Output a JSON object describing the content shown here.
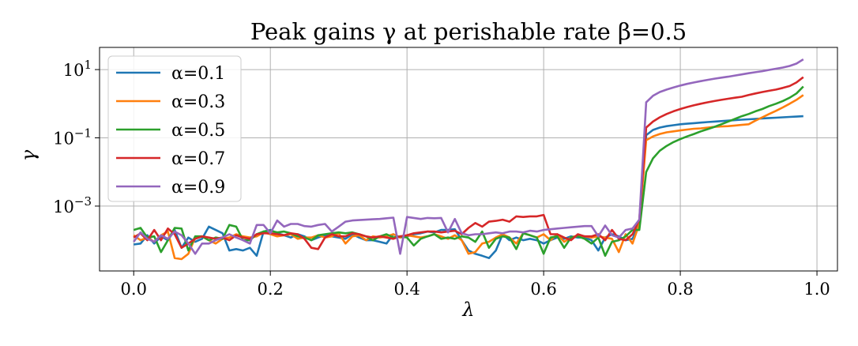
{
  "chart_data": {
    "type": "line",
    "title": "Peak gains γ at perishable rate β=0.5",
    "xlabel": "λ",
    "ylabel": "γ",
    "yscale": "log",
    "xlim": [
      -0.05,
      1.03
    ],
    "ylim_log10": [
      -4.9,
      1.65
    ],
    "grid": true,
    "legend_position": "upper left",
    "xticks": [
      {
        "value": 0.0,
        "label": "0.0"
      },
      {
        "value": 0.2,
        "label": "0.2"
      },
      {
        "value": 0.4,
        "label": "0.4"
      },
      {
        "value": 0.6,
        "label": "0.6"
      },
      {
        "value": 0.8,
        "label": "0.8"
      },
      {
        "value": 1.0,
        "label": "1.0"
      }
    ],
    "yticks": [
      {
        "value": 10,
        "base": "10",
        "exp": "1"
      },
      {
        "value": 0.1,
        "base": "10",
        "exp": "−1"
      },
      {
        "value": 0.001,
        "base": "10",
        "exp": "−3"
      }
    ],
    "x": [
      0.0,
      0.01,
      0.02,
      0.03,
      0.04,
      0.05,
      0.06,
      0.07,
      0.08,
      0.09,
      0.1,
      0.11,
      0.12,
      0.13,
      0.14,
      0.15,
      0.16,
      0.17,
      0.18,
      0.19,
      0.2,
      0.21,
      0.22,
      0.23,
      0.24,
      0.25,
      0.26,
      0.27,
      0.28,
      0.29,
      0.3,
      0.31,
      0.32,
      0.33,
      0.34,
      0.35,
      0.36,
      0.37,
      0.38,
      0.39,
      0.4,
      0.41,
      0.42,
      0.43,
      0.44,
      0.45,
      0.46,
      0.47,
      0.48,
      0.49,
      0.5,
      0.51,
      0.52,
      0.53,
      0.54,
      0.55,
      0.56,
      0.57,
      0.58,
      0.59,
      0.6,
      0.61,
      0.62,
      0.63,
      0.64,
      0.65,
      0.66,
      0.67,
      0.68,
      0.69,
      0.7,
      0.71,
      0.72,
      0.73,
      0.74,
      0.75,
      0.76,
      0.77,
      0.78,
      0.79,
      0.8,
      0.81,
      0.82,
      0.83,
      0.84,
      0.85,
      0.86,
      0.87,
      0.88,
      0.89,
      0.9,
      0.91,
      0.92,
      0.93,
      0.94,
      0.95,
      0.96,
      0.97,
      0.98
    ],
    "series": [
      {
        "name": "α=0.1",
        "color": "#1f77b4",
        "values": [
          7.5e-05,
          8e-05,
          0.00014,
          8e-05,
          0.00013,
          0.0001,
          0.0002,
          6e-05,
          0.00012,
          9e-05,
          0.00011,
          0.00025,
          0.0002,
          0.00016,
          5e-05,
          5.5e-05,
          5e-05,
          6e-05,
          3.5e-05,
          0.00018,
          0.0002,
          0.00016,
          0.00014,
          0.00012,
          0.00015,
          0.00013,
          0.0001,
          0.00012,
          0.00014,
          0.00013,
          0.00012,
          0.00011,
          0.00015,
          0.00012,
          0.0001,
          0.0001,
          9e-05,
          8e-05,
          0.00015,
          0.00012,
          0.00013,
          0.00015,
          0.00016,
          0.00018,
          0.00017,
          0.0002,
          0.0002,
          0.00021,
          0.0001,
          5e-05,
          4e-05,
          3.5e-05,
          3e-05,
          5e-05,
          0.00015,
          0.0001,
          0.00012,
          0.0001,
          0.00011,
          0.0001,
          8e-05,
          0.0001,
          0.00012,
          0.00011,
          0.00013,
          0.00012,
          0.00012,
          0.0001,
          5e-05,
          0.00012,
          0.00015,
          0.00013,
          0.0001,
          0.00011,
          0.0003,
          0.12,
          0.17,
          0.2,
          0.22,
          0.235,
          0.25,
          0.26,
          0.27,
          0.28,
          0.29,
          0.3,
          0.31,
          0.32,
          0.33,
          0.34,
          0.35,
          0.36,
          0.37,
          0.38,
          0.39,
          0.4,
          0.41,
          0.42,
          0.43
        ]
      },
      {
        "name": "α=0.3",
        "color": "#ff7f0e",
        "values": [
          0.00014,
          0.0001,
          0.00012,
          9e-05,
          0.00014,
          0.00018,
          3e-05,
          2.8e-05,
          4e-05,
          0.00012,
          0.00013,
          0.0001,
          8e-05,
          0.00011,
          0.00012,
          0.00015,
          0.00013,
          0.00012,
          0.00013,
          0.00017,
          0.00015,
          0.00013,
          0.00014,
          0.00015,
          0.00011,
          0.00012,
          0.00012,
          0.00014,
          0.00012,
          0.00013,
          0.00016,
          8e-05,
          0.00013,
          0.00014,
          0.0001,
          0.00013,
          0.00012,
          0.00013,
          0.00015,
          0.00012,
          0.00014,
          0.00013,
          0.00012,
          0.00013,
          0.00015,
          0.00013,
          0.00011,
          0.00014,
          0.0001,
          4e-05,
          4.5e-05,
          8e-05,
          9e-05,
          0.00012,
          0.00015,
          0.00012,
          8e-05,
          0.00016,
          0.00014,
          0.00012,
          0.00015,
          0.0001,
          0.00015,
          9e-05,
          0.00012,
          0.00014,
          0.00013,
          0.00012,
          0.00013,
          0.00012,
          0.00011,
          4.5e-05,
          0.00015,
          8e-05,
          0.0003,
          0.085,
          0.11,
          0.13,
          0.145,
          0.155,
          0.165,
          0.175,
          0.185,
          0.19,
          0.2,
          0.21,
          0.215,
          0.22,
          0.23,
          0.24,
          0.25,
          0.32,
          0.4,
          0.5,
          0.62,
          0.78,
          1.0,
          1.3,
          1.8
        ]
      },
      {
        "name": "α=0.5",
        "color": "#2ca02c",
        "values": [
          0.0002,
          0.00023,
          0.00012,
          0.00013,
          4.5e-05,
          0.0001,
          0.00023,
          0.00022,
          5e-05,
          0.00013,
          0.00013,
          0.0001,
          0.00012,
          0.00011,
          0.00028,
          0.00025,
          0.0001,
          0.0001,
          0.00015,
          0.00018,
          0.00019,
          0.00017,
          0.00018,
          0.00016,
          0.00013,
          0.00012,
          0.0001,
          0.00014,
          0.00015,
          0.00016,
          0.00017,
          0.00016,
          0.00017,
          0.00015,
          0.00013,
          0.0001,
          0.00013,
          0.00015,
          0.00012,
          0.00013,
          0.00012,
          7e-05,
          0.00011,
          0.00013,
          0.00015,
          0.00011,
          0.00012,
          0.00011,
          0.00013,
          0.00012,
          9e-05,
          0.00018,
          6e-05,
          0.00011,
          0.00013,
          0.00012,
          5.5e-05,
          0.00016,
          0.00014,
          0.00012,
          4e-05,
          0.00012,
          0.00013,
          6e-05,
          0.00012,
          0.00013,
          0.00011,
          8e-05,
          0.00012,
          3.5e-05,
          9e-05,
          0.0001,
          0.00013,
          0.0002,
          0.0002,
          0.01,
          0.025,
          0.042,
          0.058,
          0.075,
          0.092,
          0.11,
          0.13,
          0.155,
          0.18,
          0.21,
          0.25,
          0.3,
          0.36,
          0.43,
          0.5,
          0.6,
          0.7,
          0.85,
          1.0,
          1.2,
          1.5,
          2.0,
          3.2
        ]
      },
      {
        "name": "α=0.7",
        "color": "#d62728",
        "values": [
          0.00012,
          0.00016,
          0.0001,
          0.0002,
          0.0001,
          0.00022,
          0.00015,
          6e-05,
          8e-05,
          0.00011,
          0.00013,
          0.00012,
          0.00011,
          0.00012,
          0.0001,
          0.00014,
          0.00012,
          0.00011,
          0.00015,
          0.00016,
          0.00016,
          0.00015,
          0.00014,
          0.00016,
          0.00015,
          0.00011,
          6e-05,
          5.5e-05,
          0.00012,
          0.00015,
          0.00013,
          0.00013,
          0.00016,
          0.00015,
          0.00013,
          0.00012,
          0.00013,
          0.00012,
          0.00011,
          0.00013,
          0.00014,
          0.00016,
          0.00017,
          0.00018,
          0.00018,
          0.00017,
          0.00018,
          0.00019,
          0.00015,
          0.00023,
          0.00032,
          0.00025,
          0.00035,
          0.00037,
          0.0004,
          0.00035,
          0.0005,
          0.00048,
          0.0005,
          0.0005,
          0.00055,
          0.00015,
          0.00015,
          0.00012,
          0.0001,
          0.00015,
          0.00013,
          0.00013,
          0.00015,
          0.0001,
          0.0002,
          0.00011,
          0.0001,
          0.00015,
          0.0004,
          0.2,
          0.3,
          0.4,
          0.5,
          0.6,
          0.7,
          0.8,
          0.9,
          1.0,
          1.1,
          1.2,
          1.3,
          1.4,
          1.5,
          1.6,
          1.8,
          2.0,
          2.2,
          2.4,
          2.6,
          2.9,
          3.3,
          4.2,
          6.0
        ]
      },
      {
        "name": "α=0.9",
        "color": "#9467bd",
        "values": [
          9e-05,
          0.00017,
          0.00011,
          9e-05,
          0.00014,
          0.00011,
          0.00018,
          0.00014,
          8e-05,
          4e-05,
          8e-05,
          8e-05,
          0.0001,
          0.00012,
          0.00015,
          0.00012,
          0.0001,
          8e-05,
          0.00028,
          0.00028,
          0.00016,
          0.00038,
          0.00025,
          0.0003,
          0.0003,
          0.00026,
          0.00025,
          0.00028,
          0.0003,
          0.00018,
          0.00025,
          0.00035,
          0.00038,
          0.00039,
          0.0004,
          0.00041,
          0.00042,
          0.00044,
          0.00046,
          4e-05,
          0.00048,
          0.00045,
          0.00042,
          0.00045,
          0.00044,
          0.00045,
          0.00017,
          0.00042,
          0.00016,
          0.00014,
          0.00015,
          0.00015,
          0.00016,
          0.00017,
          0.00016,
          0.00018,
          0.00018,
          0.00017,
          0.00019,
          0.00018,
          0.0002,
          0.00021,
          0.00022,
          0.00023,
          0.00024,
          0.00025,
          0.00026,
          0.00026,
          0.00013,
          0.00027,
          0.00014,
          0.00012,
          0.0002,
          0.00022,
          0.0004,
          1.1,
          1.7,
          2.2,
          2.6,
          3.0,
          3.4,
          3.8,
          4.2,
          4.6,
          5.0,
          5.4,
          5.8,
          6.2,
          6.7,
          7.2,
          7.8,
          8.4,
          9.0,
          9.8,
          10.6,
          11.5,
          12.8,
          15.0,
          20.0
        ]
      }
    ]
  }
}
